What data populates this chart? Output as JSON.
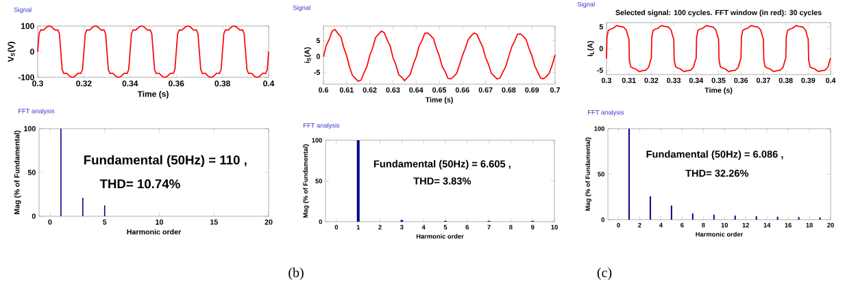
{
  "chart_data": [
    {
      "type": "line",
      "ylabel": "V$_{S}$(V)",
      "xlabel": "Time (s)",
      "annotations": [
        "Signal"
      ],
      "line_style": "solid",
      "xlim": [
        0.3,
        0.4
      ],
      "xticks": [
        0.3,
        0.32,
        0.34,
        0.36,
        0.38,
        0.4
      ],
      "ylim": [
        -100,
        100
      ],
      "yticks": [
        -100,
        0,
        100
      ],
      "series": [
        {
          "color": "#ff0000",
          "x": [
            0.3,
            0.3006,
            0.3013,
            0.3025,
            0.304,
            0.305,
            0.306,
            0.3075,
            0.3087,
            0.3094,
            0.31,
            0.3106,
            0.3113,
            0.3125,
            0.314,
            0.315,
            0.316,
            0.3175,
            0.3187,
            0.3194,
            0.32,
            0.3206,
            0.3213,
            0.3225,
            0.324,
            0.325,
            0.326,
            0.3275,
            0.3287,
            0.3294,
            0.33,
            0.3306,
            0.3313,
            0.3325,
            0.334,
            0.335,
            0.336,
            0.3375,
            0.3387,
            0.3394,
            0.34,
            0.3406,
            0.3413,
            0.3425,
            0.344,
            0.345,
            0.346,
            0.3475,
            0.3487,
            0.3494,
            0.35,
            0.3506,
            0.3513,
            0.3525,
            0.354,
            0.355,
            0.356,
            0.3575,
            0.3587,
            0.3594,
            0.36,
            0.3606,
            0.3613,
            0.3625,
            0.364,
            0.365,
            0.366,
            0.3675,
            0.3687,
            0.3694,
            0.37,
            0.3706,
            0.3713,
            0.3725,
            0.374,
            0.375,
            0.376,
            0.3775,
            0.3787,
            0.3794,
            0.38,
            0.3806,
            0.3813,
            0.3825,
            0.384,
            0.385,
            0.386,
            0.3875,
            0.3887,
            0.3894,
            0.39,
            0.3906,
            0.3913,
            0.3925,
            0.394,
            0.395,
            0.396,
            0.3975,
            0.3987,
            0.3994,
            0.4
          ],
          "values": [
            0,
            70,
            85,
            84,
            97,
            100,
            97,
            84,
            85,
            70,
            0,
            -70,
            -85,
            -84,
            -97,
            -100,
            -97,
            -84,
            -85,
            -70,
            0,
            70,
            85,
            84,
            97,
            100,
            97,
            84,
            85,
            70,
            0,
            -70,
            -85,
            -84,
            -97,
            -100,
            -97,
            -84,
            -85,
            -70,
            0,
            70,
            85,
            84,
            97,
            100,
            97,
            84,
            85,
            70,
            0,
            -70,
            -85,
            -84,
            -97,
            -100,
            -97,
            -84,
            -85,
            -70,
            0,
            70,
            85,
            84,
            97,
            100,
            97,
            84,
            85,
            70,
            0,
            -70,
            -85,
            -84,
            -97,
            -100,
            -97,
            -84,
            -85,
            -70,
            0,
            70,
            85,
            84,
            97,
            100,
            97,
            84,
            85,
            70,
            0,
            -70,
            -85,
            -84,
            -97,
            -100,
            -97,
            -84,
            -85,
            -70,
            0
          ]
        }
      ]
    },
    {
      "type": "line",
      "ylabel": "i$_{S}$(A)",
      "xlabel": "Time (s)",
      "annotations": [
        "Signal"
      ],
      "line_style": "solid",
      "xlim": [
        0.6,
        0.7
      ],
      "xticks": [
        0.6,
        0.61,
        0.62,
        0.63,
        0.64,
        0.65,
        0.66,
        0.67,
        0.68,
        0.69,
        0.7
      ],
      "ylim": [
        -8.7,
        9.6
      ],
      "yticks": [
        -5,
        0,
        5
      ],
      "series": [
        {
          "color": "#ff0000",
          "x": [
            0.6,
            0.60125,
            0.6025,
            0.60375,
            0.605,
            0.60625,
            0.6075,
            0.60875,
            0.61,
            0.61125,
            0.6125,
            0.61375,
            0.615,
            0.61625,
            0.6175,
            0.61875,
            0.62,
            0.62125,
            0.6225,
            0.62375,
            0.625,
            0.62625,
            0.6275,
            0.62875,
            0.63,
            0.63125,
            0.6325,
            0.63375,
            0.635,
            0.63625,
            0.6375,
            0.63875,
            0.64,
            0.64125,
            0.6425,
            0.64375,
            0.645,
            0.64625,
            0.6475,
            0.64875,
            0.65,
            0.65125,
            0.6525,
            0.65375,
            0.655,
            0.65625,
            0.6575,
            0.65875,
            0.66,
            0.66125,
            0.6625,
            0.66375,
            0.665,
            0.66625,
            0.6675,
            0.66875,
            0.67,
            0.67125,
            0.6725,
            0.67375,
            0.675,
            0.67625,
            0.6775,
            0.67875,
            0.68,
            0.68125,
            0.6825,
            0.68375,
            0.685,
            0.68625,
            0.6875,
            0.68875,
            0.69,
            0.69125,
            0.6925,
            0.69375,
            0.695,
            0.69625,
            0.6975,
            0.69875,
            0.7
          ],
          "values": [
            0,
            3.6,
            5.4,
            8.0,
            8.5,
            7.2,
            6.2,
            2.8,
            0.3,
            -3.3,
            -5.9,
            -6.9,
            -7.8,
            -7.4,
            -5.1,
            -3.2,
            0.4,
            2.7,
            6.0,
            7.0,
            8.0,
            7.5,
            5.2,
            3.4,
            -0.3,
            -2.6,
            -5.7,
            -6.5,
            -7.6,
            -6.6,
            -5.6,
            -2.5,
            -0.2,
            3.2,
            5.0,
            7.3,
            7.4,
            6.6,
            5.6,
            2.6,
            0.2,
            -3.1,
            -4.7,
            -6.9,
            -7.0,
            -6.3,
            -5.3,
            -2.6,
            0.3,
            2.6,
            5.4,
            6.5,
            7.4,
            7.0,
            4.9,
            3.0,
            -0.3,
            -2.5,
            -5.3,
            -6.2,
            -7.1,
            -6.7,
            -4.8,
            -3.0,
            0.1,
            3.0,
            4.8,
            7.0,
            7.1,
            6.4,
            5.3,
            2.5,
            0.2,
            -3.0,
            -4.9,
            -6.8,
            -7.0,
            -6.3,
            -5.2,
            -2.6,
            0.5
          ]
        }
      ]
    },
    {
      "type": "line",
      "title": "Selected signal: 100 cycles. FFT window (in red): 30 cycles",
      "ylabel": "I$_{L}$(A)",
      "xlabel": "Time (s)",
      "annotations": [
        "Signal"
      ],
      "line_style": "solid",
      "xlim": [
        0.3,
        0.4
      ],
      "xticks": [
        0.3,
        0.31,
        0.32,
        0.33,
        0.34,
        0.35,
        0.36,
        0.37,
        0.38,
        0.39,
        0.4
      ],
      "ylim": [
        -6,
        6
      ],
      "yticks": [
        -5,
        0,
        5
      ],
      "series": [
        {
          "color": "#ff0000",
          "x": [
            0.3,
            0.3002,
            0.3008,
            0.3018,
            0.303,
            0.3045,
            0.306,
            0.3075,
            0.3088,
            0.3097,
            0.31,
            0.3102,
            0.3108,
            0.3118,
            0.313,
            0.3145,
            0.316,
            0.3175,
            0.3188,
            0.3197,
            0.32,
            0.3202,
            0.3208,
            0.3218,
            0.323,
            0.3245,
            0.326,
            0.3275,
            0.3288,
            0.3297,
            0.33,
            0.3302,
            0.3308,
            0.3318,
            0.333,
            0.3345,
            0.336,
            0.3375,
            0.3388,
            0.3397,
            0.34,
            0.3402,
            0.3408,
            0.3418,
            0.343,
            0.3445,
            0.346,
            0.3475,
            0.3488,
            0.3497,
            0.35,
            0.3502,
            0.3508,
            0.3518,
            0.353,
            0.3545,
            0.356,
            0.3575,
            0.3588,
            0.3597,
            0.36,
            0.3602,
            0.3608,
            0.3618,
            0.363,
            0.3645,
            0.366,
            0.3675,
            0.3688,
            0.3697,
            0.37,
            0.3702,
            0.3708,
            0.3718,
            0.373,
            0.3745,
            0.376,
            0.3775,
            0.3788,
            0.3797,
            0.38,
            0.3802,
            0.3808,
            0.3818,
            0.383,
            0.3845,
            0.386,
            0.3875,
            0.3888,
            0.3897,
            0.39,
            0.3902,
            0.3908,
            0.3918,
            0.393,
            0.3945,
            0.396,
            0.3975,
            0.3988,
            0.3997,
            0.4
          ],
          "values": [
            -2.3,
            2.6,
            4.2,
            4.5,
            4.7,
            5.3,
            5.1,
            5.0,
            4.3,
            2.6,
            2.3,
            -2.6,
            -4.2,
            -4.5,
            -4.7,
            -5.3,
            -5.1,
            -5.0,
            -4.3,
            -2.6,
            -2.3,
            2.6,
            4.2,
            4.5,
            4.7,
            5.3,
            5.1,
            5.0,
            4.3,
            2.6,
            2.3,
            -2.6,
            -4.2,
            -4.5,
            -4.7,
            -5.3,
            -5.1,
            -5.0,
            -4.3,
            -2.6,
            -2.3,
            2.6,
            4.2,
            4.5,
            4.7,
            5.3,
            5.1,
            5.0,
            4.3,
            2.6,
            2.3,
            -2.6,
            -4.2,
            -4.5,
            -4.7,
            -5.3,
            -5.1,
            -5.0,
            -4.3,
            -2.6,
            -2.3,
            2.6,
            4.2,
            4.5,
            4.7,
            5.3,
            5.1,
            5.0,
            4.3,
            2.6,
            2.3,
            -2.6,
            -4.2,
            -4.5,
            -4.7,
            -5.3,
            -5.1,
            -5.0,
            -4.3,
            -2.6,
            -2.3,
            2.6,
            4.2,
            4.5,
            4.7,
            5.3,
            5.1,
            5.0,
            4.3,
            2.6,
            2.3,
            -2.6,
            -4.2,
            -4.5,
            -4.7,
            -5.3,
            -5.1,
            -5.0,
            -4.3,
            -2.6,
            -2.2
          ]
        }
      ]
    },
    {
      "type": "bar",
      "ylabel": "Mag (% of Fundamental)",
      "xlabel": "Harmonic order",
      "annotations": [
        "FFT analysis",
        "Fundamental (50Hz) = 110 ,",
        "THD= 10.74%"
      ],
      "xlim": [
        -1,
        20
      ],
      "xticks": [
        0,
        5,
        10,
        15,
        20
      ],
      "ylim": [
        0,
        100
      ],
      "yticks": [
        0,
        50,
        100
      ],
      "series": [
        {
          "color": "#00008b",
          "x": [
            1,
            3,
            5
          ],
          "values": [
            100,
            21,
            12.5
          ]
        }
      ]
    },
    {
      "type": "bar",
      "ylabel": "Mag (% of Fundamental)",
      "xlabel": "Harmonic order",
      "annotations": [
        "FFT analysis",
        "Fundamental (50Hz) = 6.605 ,",
        "THD= 3.83%",
        "(b)"
      ],
      "xlim": [
        -0.5,
        10
      ],
      "xticks": [
        0,
        1,
        2,
        3,
        4,
        5,
        6,
        7,
        8,
        9,
        10
      ],
      "ylim": [
        0,
        100
      ],
      "yticks": [
        0,
        50,
        100
      ],
      "series": [
        {
          "color": "#00008b",
          "x": [
            1,
            3,
            5,
            7,
            9
          ],
          "values": [
            100,
            2,
            1,
            1,
            1
          ]
        }
      ]
    },
    {
      "type": "bar",
      "ylabel": "Mag (% of Fundamental)",
      "xlabel": "Harmonic order",
      "annotations": [
        "FFT analysis",
        "Fundamental (50Hz) = 6.086 ,",
        "THD= 32.26%",
        "(c)"
      ],
      "xlim": [
        -1,
        20
      ],
      "xticks": [
        0,
        2,
        4,
        6,
        8,
        10,
        12,
        14,
        16,
        18,
        20
      ],
      "ylim": [
        0,
        100
      ],
      "yticks": [
        0,
        50,
        100
      ],
      "series": [
        {
          "color": "#00008b",
          "x": [
            1,
            3,
            5,
            7,
            9,
            11,
            13,
            15,
            17,
            19
          ],
          "values": [
            100,
            25.6,
            15.5,
            6.8,
            5.5,
            4.5,
            3.8,
            3.3,
            2.8,
            2.5
          ]
        }
      ]
    }
  ]
}
